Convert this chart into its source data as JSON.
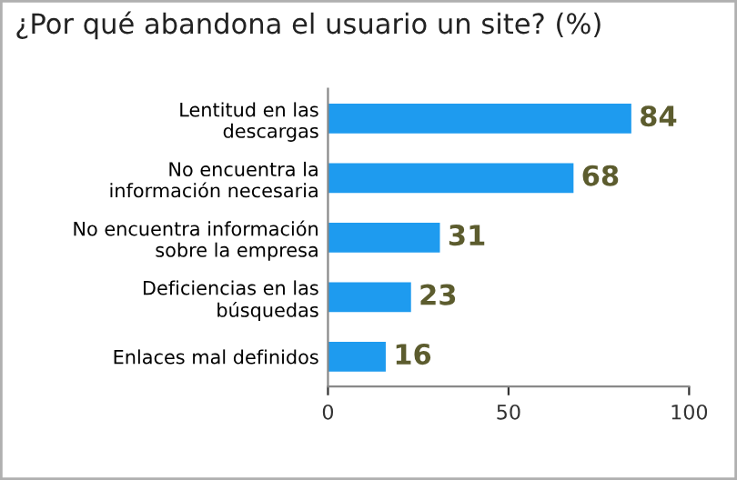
{
  "chart_data": {
    "type": "bar",
    "orientation": "horizontal",
    "title": "¿Por qué abandona el usuario un site? (%)",
    "categories": [
      "Lentitud en las\ndescargas",
      "No encuentra la\ninformación necesaria",
      "No encuentra información\nsobre la empresa",
      "Deficiencias en las\nbúsquedas",
      "Enlaces mal definidos"
    ],
    "values": [
      84,
      68,
      31,
      23,
      16
    ],
    "color": "#1e9bef",
    "xlim": [
      0,
      100
    ],
    "xticks": [
      0,
      50,
      100
    ],
    "data_labels": true,
    "grid": false
  }
}
